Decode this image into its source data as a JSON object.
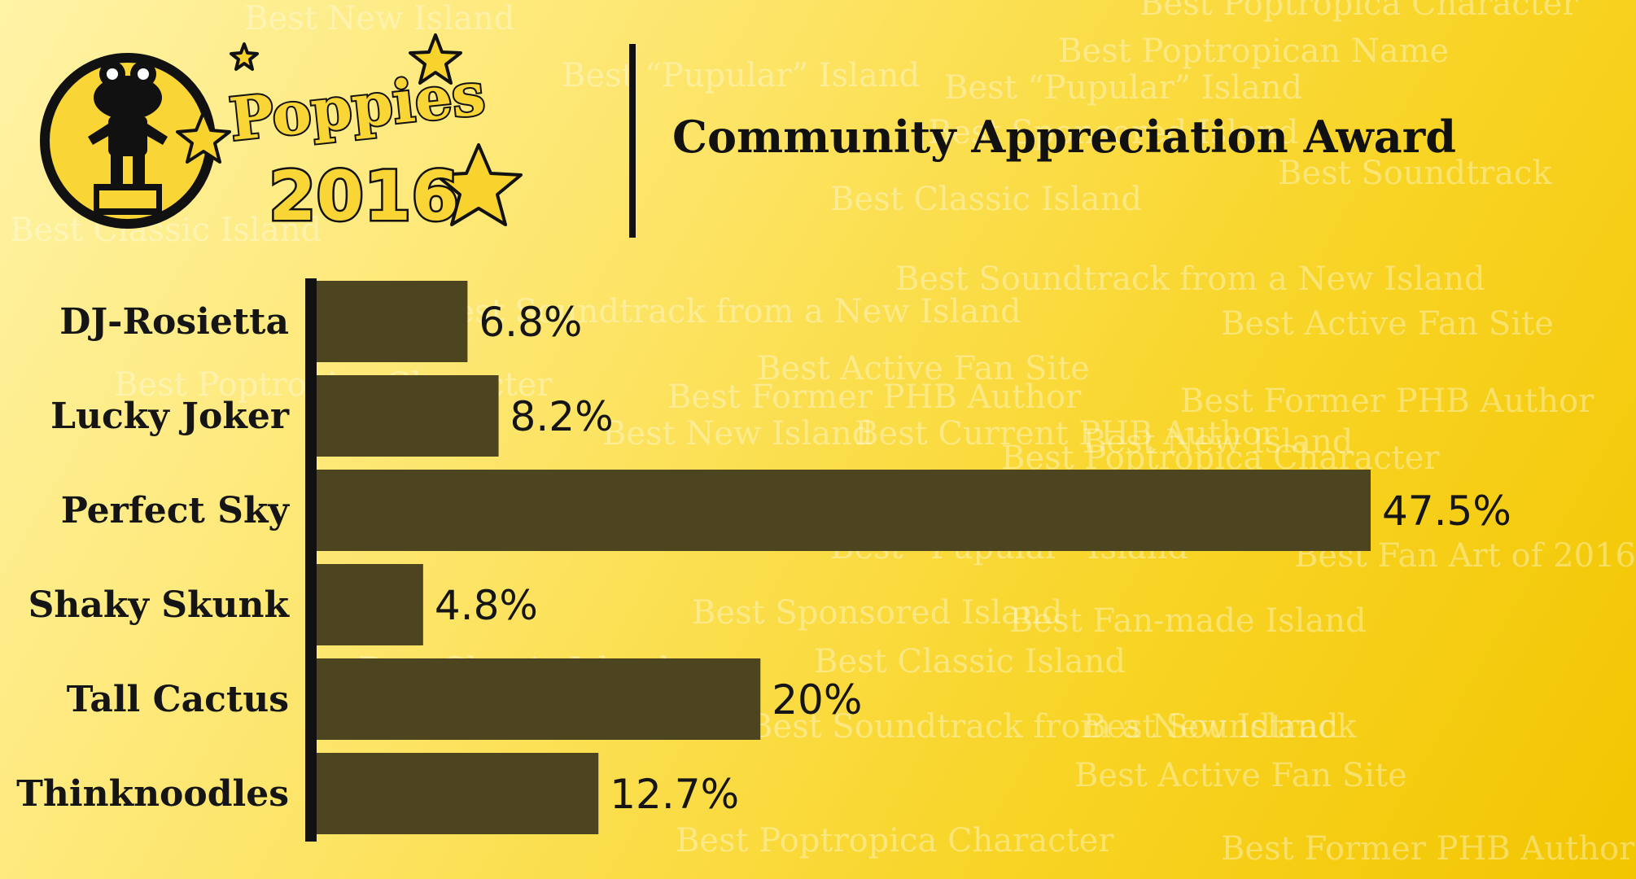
{
  "award_title": "Community Appreciation Award",
  "logo": {
    "word": "Poppies",
    "year": "2016"
  },
  "background_phrases": [
    "Best New Island",
    "Best Poptropica Character",
    "Best Poptropican Name",
    "Best “Pupular” Island",
    "Best Sponsored Island",
    "Best Soundtrack",
    "Best Classic Island",
    "Best Soundtrack from a New Island",
    "Best Active Fan Site",
    "Best Former PHB Author",
    "Best Current PHB Author",
    "Best Fan Art of 2016",
    "Best Fan-made Island"
  ],
  "colors": {
    "bar": "#4d4420",
    "axis": "#111111",
    "bg_start": "#fff3a6",
    "bg_end": "#f2c500"
  },
  "chart_data": {
    "type": "bar",
    "orientation": "horizontal",
    "title": "Community Appreciation Award",
    "categories": [
      "DJ-Rosietta",
      "Lucky Joker",
      "Perfect Sky",
      "Shaky Skunk",
      "Tall Cactus",
      "Thinknoodles"
    ],
    "values": [
      6.8,
      8.2,
      47.5,
      4.8,
      20,
      12.7
    ],
    "value_labels": [
      "6.8%",
      "8.2%",
      "47.5%",
      "4.8%",
      "20%",
      "12.7%"
    ],
    "xlim": [
      0,
      47.5
    ],
    "grid": false,
    "legend": "none"
  }
}
